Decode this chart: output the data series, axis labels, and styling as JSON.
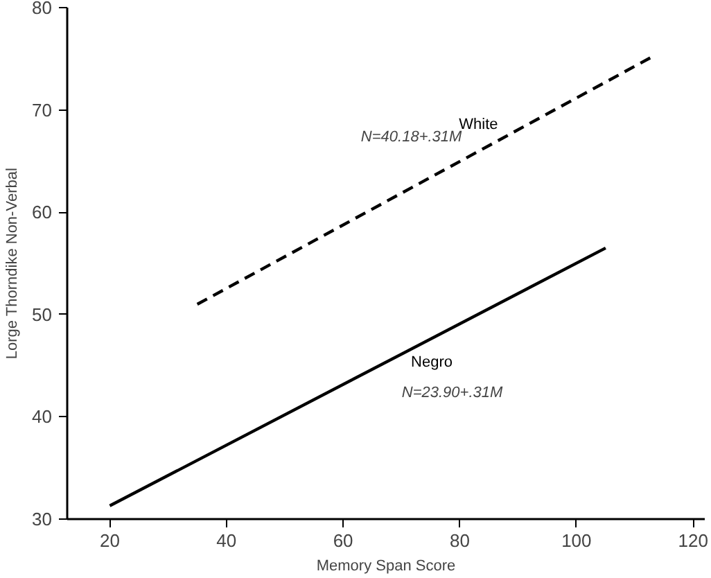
{
  "chart_data": {
    "type": "line",
    "xlabel": "Memory Span Score",
    "ylabel": "Lorge Thorndike Non-Verbal",
    "xlim": [
      12.7,
      122
    ],
    "ylim": [
      30,
      80
    ],
    "xticks": [
      20,
      40,
      60,
      80,
      100,
      120
    ],
    "yticks": [
      30,
      40,
      50,
      60,
      70,
      80
    ],
    "grid": false,
    "series": [
      {
        "name": "White",
        "color": "#000000",
        "line_style": "dashed",
        "x": [
          35,
          113
        ],
        "values": [
          51.0,
          75.2
        ]
      },
      {
        "name": "Negro",
        "color": "#000000",
        "line_style": "solid",
        "x": [
          20,
          105
        ],
        "values": [
          31.3,
          56.5
        ]
      }
    ],
    "annotations": [
      "N=40.18+.31M",
      "N=23.90+.31M"
    ]
  }
}
